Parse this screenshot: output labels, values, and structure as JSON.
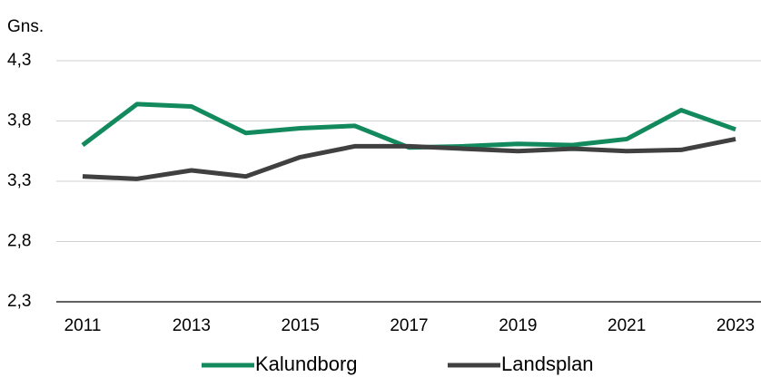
{
  "chart_data": {
    "type": "line",
    "y_axis_label": "Gns.",
    "categories": [
      "2011",
      null,
      "2013",
      null,
      "2015",
      null,
      "2017",
      null,
      "2019",
      null,
      "2021",
      null,
      "2023"
    ],
    "series": [
      {
        "name": "Kalundborg",
        "color": "#138a5e",
        "values": [
          3.6,
          3.94,
          3.92,
          3.7,
          3.74,
          3.76,
          3.58,
          3.59,
          3.61,
          3.6,
          3.65,
          3.89,
          3.73
        ]
      },
      {
        "name": "Landsplan",
        "color": "#404040",
        "values": [
          3.34,
          3.32,
          3.39,
          3.34,
          3.5,
          3.59,
          3.59,
          3.57,
          3.55,
          3.57,
          3.55,
          3.56,
          3.65
        ]
      }
    ],
    "ylim": [
      2.3,
      4.3
    ],
    "yticks": [
      {
        "value": 2.3,
        "label": "2,3"
      },
      {
        "value": 2.8,
        "label": "2,8"
      },
      {
        "value": 3.3,
        "label": "3,3"
      },
      {
        "value": 3.8,
        "label": "3,8"
      },
      {
        "value": 4.3,
        "label": "4,3"
      }
    ],
    "grid": true,
    "legend": "bottom"
  }
}
